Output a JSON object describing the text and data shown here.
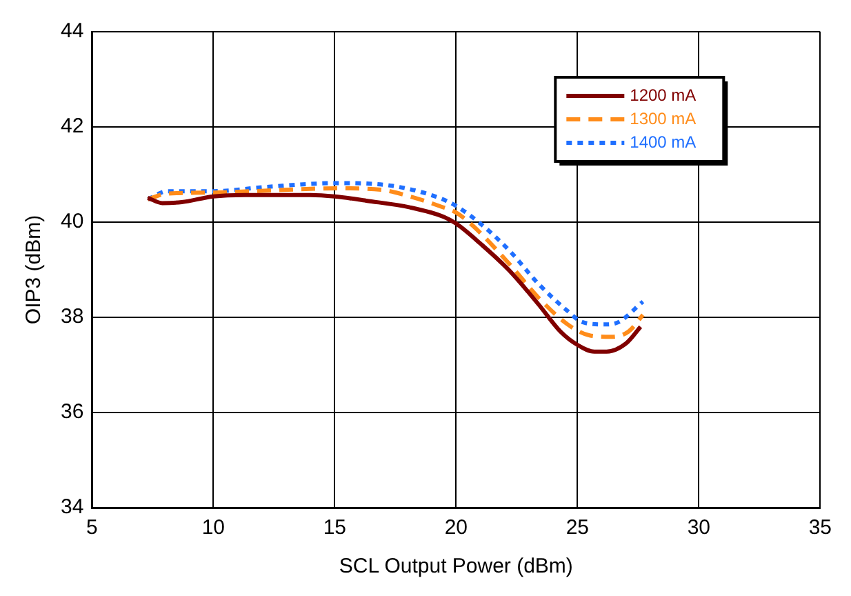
{
  "chart_data": {
    "type": "line",
    "xlabel": "SCL Output Power (dBm)",
    "ylabel": "OIP3 (dBm)",
    "xlim": [
      5,
      35
    ],
    "xticks": [
      5,
      10,
      15,
      20,
      25,
      30,
      35
    ],
    "ylim": [
      34,
      44
    ],
    "yticks": [
      34,
      36,
      38,
      40,
      42,
      44
    ],
    "grid": true,
    "legend": "top right",
    "marker": "none",
    "series": [
      {
        "name": "1200 mA",
        "color": "#800000",
        "line_style": "solid",
        "x": [
          7.3,
          7.9,
          8.7,
          10,
          11.3,
          14,
          15,
          16.3,
          18.1,
          19.5,
          20,
          21,
          22.2,
          23.4,
          24.3,
          25,
          25.7,
          26.2,
          27,
          27.6
        ],
        "values": [
          40.51,
          40.4,
          40.42,
          40.54,
          40.57,
          40.57,
          40.54,
          40.45,
          40.31,
          40.11,
          39.97,
          39.55,
          38.98,
          38.27,
          37.7,
          37.42,
          37.28,
          37.28,
          37.45,
          37.8
        ]
      },
      {
        "name": "1300 mA",
        "color": "#ff8c1a",
        "line_style": "dashed",
        "x": [
          7.3,
          8.1,
          10,
          11.6,
          15.1,
          16.9,
          18.1,
          19.3,
          20,
          20.7,
          22.2,
          23.4,
          24.6,
          25.5,
          26.4,
          27.1,
          27.7
        ],
        "values": [
          40.48,
          40.6,
          40.62,
          40.65,
          40.71,
          40.68,
          40.54,
          40.34,
          40.2,
          39.92,
          39.12,
          38.41,
          37.85,
          37.62,
          37.59,
          37.7,
          38.05
        ]
      },
      {
        "name": "1400 mA",
        "color": "#1f6fff",
        "line_style": "dotted",
        "x": [
          7.3,
          8.1,
          10,
          12.2,
          15.1,
          17.4,
          19.3,
          20,
          21,
          22.2,
          23.4,
          24.6,
          25.2,
          26.1,
          26.6,
          27.7
        ],
        "values": [
          40.48,
          40.65,
          40.65,
          40.74,
          40.82,
          40.76,
          40.51,
          40.34,
          39.97,
          39.4,
          38.7,
          38.13,
          37.9,
          37.85,
          37.88,
          38.33
        ]
      }
    ]
  }
}
